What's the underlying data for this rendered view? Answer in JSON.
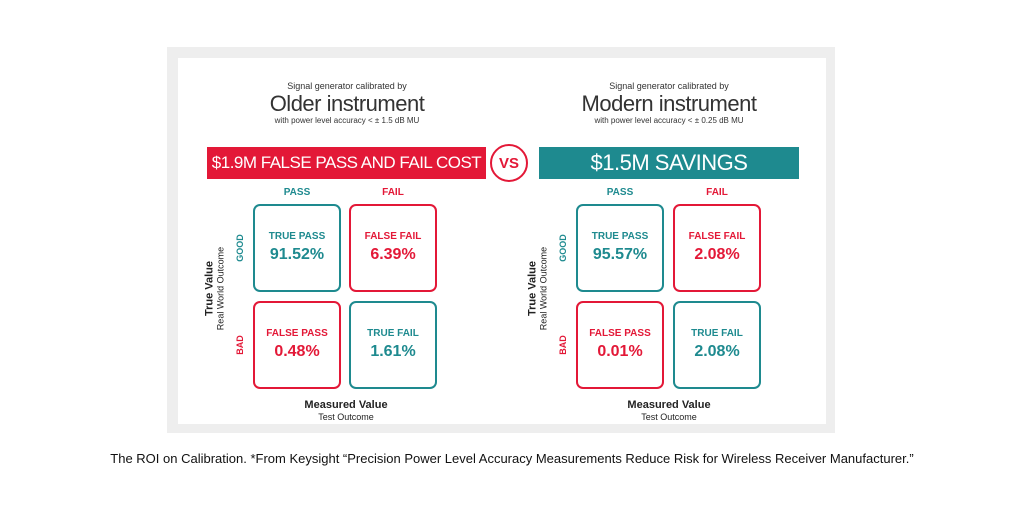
{
  "left": {
    "caption_top": "Signal generator calibrated by",
    "instrument": "Older instrument",
    "accuracy": "with power level accuracy < ± 1.5 dB MU",
    "banner": "$1.9M FALSE PASS AND FAIL COST",
    "col_pass": "PASS",
    "col_fail": "FAIL",
    "row_good": "GOOD",
    "row_bad": "BAD",
    "y_axis_title": "True Value",
    "y_axis_sub": "Real World Outcome",
    "x_axis_title": "Measured Value",
    "x_axis_sub": "Test Outcome",
    "cells": {
      "true_pass": {
        "label": "TRUE PASS",
        "value": "91.52%"
      },
      "false_fail": {
        "label": "FALSE FAIL",
        "value": "6.39%"
      },
      "false_pass": {
        "label": "FALSE PASS",
        "value": "0.48%"
      },
      "true_fail": {
        "label": "TRUE FAIL",
        "value": "1.61%"
      }
    }
  },
  "right": {
    "caption_top": "Signal generator calibrated by",
    "instrument": "Modern instrument",
    "accuracy": "with power level accuracy < ± 0.25 dB MU",
    "banner": "$1.5M SAVINGS",
    "col_pass": "PASS",
    "col_fail": "FAIL",
    "row_good": "GOOD",
    "row_bad": "BAD",
    "y_axis_title": "True Value",
    "y_axis_sub": "Real World Outcome",
    "x_axis_title": "Measured Value",
    "x_axis_sub": "Test Outcome",
    "cells": {
      "true_pass": {
        "label": "TRUE PASS",
        "value": "95.57%"
      },
      "false_fail": {
        "label": "FALSE FAIL",
        "value": "2.08%"
      },
      "false_pass": {
        "label": "FALSE PASS",
        "value": "0.01%"
      },
      "true_fail": {
        "label": "TRUE FAIL",
        "value": "2.08%"
      }
    }
  },
  "vs_label": "VS",
  "caption": "The ROI on Calibration. *From Keysight “Precision Power Level Accuracy Measurements Reduce Risk for Wireless Receiver Manufacturer.”",
  "colors": {
    "red": "#e31837",
    "teal": "#1e8a8f"
  }
}
